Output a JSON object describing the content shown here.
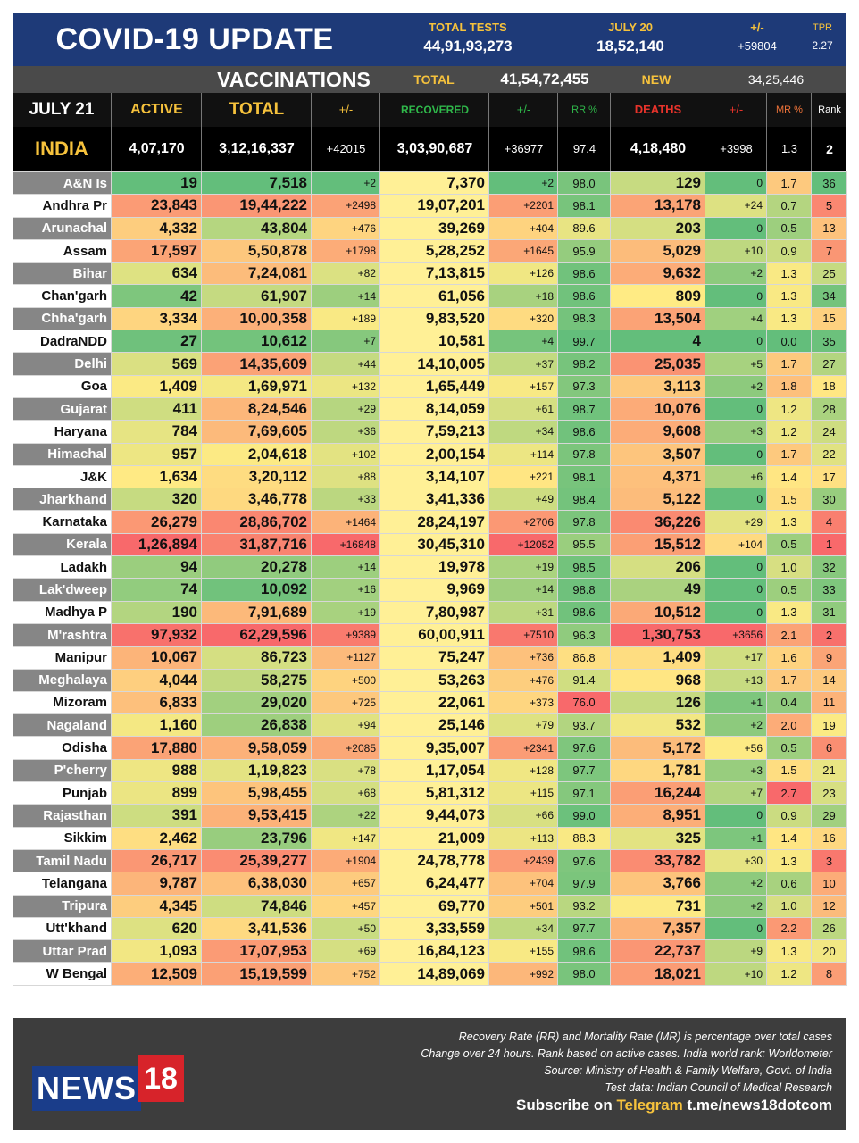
{
  "header": {
    "title": "COVID-19 UPDATE",
    "total_tests_label": "TOTAL TESTS",
    "total_tests_value": "44,91,93,273",
    "july20_label": "JULY 20",
    "july20_value": "18,52,140",
    "plusminus_label": "+/-",
    "plusminus_value": "+59804",
    "tpr_label": "TPR",
    "tpr_value": "2.27"
  },
  "vaccinations": {
    "label": "VACCINATIONS",
    "total_label": "TOTAL",
    "total_value": "41,54,72,455",
    "new_label": "NEW",
    "new_value": "34,25,446"
  },
  "columns": {
    "date": "JULY 21",
    "active": "ACTIVE",
    "total": "TOTAL",
    "total_delta": "+/-",
    "recovered": "RECOVERED",
    "rec_delta": "+/-",
    "rr": "RR %",
    "deaths": "DEATHS",
    "death_delta": "+/-",
    "mr": "MR %",
    "rank": "Rank"
  },
  "colors": {
    "header_bg": "#1e3a78",
    "gold": "#f6c23c",
    "active_label": "#f6c23c",
    "recovered_label": "#2fb84a",
    "deaths_label": "#e8332b",
    "mr_label": "#f0743a",
    "footer_bg": "#3d3d3d",
    "news_blue": "#1a3d8a",
    "news_red": "#d7232a"
  },
  "india": {
    "name": "INDIA",
    "active": "4,07,170",
    "total": "3,12,16,337",
    "total_delta": "+42015",
    "recovered": "3,03,90,687",
    "rec_delta": "+36977",
    "rr": "97.4",
    "deaths": "4,18,480",
    "death_delta": "+3998",
    "mr": "1.3",
    "rank": "2"
  },
  "rows": [
    {
      "state": "A&N Is",
      "active": "19",
      "total": "7,518",
      "td": "+2",
      "rec": "7,370",
      "rd": "+2",
      "rr": "98.0",
      "deaths": "129",
      "dd": "0",
      "mr": "1.7",
      "rank": "36"
    },
    {
      "state": "Andhra Pr",
      "active": "23,843",
      "total": "19,44,222",
      "td": "+2498",
      "rec": "19,07,201",
      "rd": "+2201",
      "rr": "98.1",
      "deaths": "13,178",
      "dd": "+24",
      "mr": "0.7",
      "rank": "5"
    },
    {
      "state": "Arunachal",
      "active": "4,332",
      "total": "43,804",
      "td": "+476",
      "rec": "39,269",
      "rd": "+404",
      "rr": "89.6",
      "deaths": "203",
      "dd": "0",
      "mr": "0.5",
      "rank": "13"
    },
    {
      "state": "Assam",
      "active": "17,597",
      "total": "5,50,878",
      "td": "+1798",
      "rec": "5,28,252",
      "rd": "+1645",
      "rr": "95.9",
      "deaths": "5,029",
      "dd": "+10",
      "mr": "0.9",
      "rank": "7"
    },
    {
      "state": "Bihar",
      "active": "634",
      "total": "7,24,081",
      "td": "+82",
      "rec": "7,13,815",
      "rd": "+126",
      "rr": "98.6",
      "deaths": "9,632",
      "dd": "+2",
      "mr": "1.3",
      "rank": "25"
    },
    {
      "state": "Chan'garh",
      "active": "42",
      "total": "61,907",
      "td": "+14",
      "rec": "61,056",
      "rd": "+18",
      "rr": "98.6",
      "deaths": "809",
      "dd": "0",
      "mr": "1.3",
      "rank": "34"
    },
    {
      "state": "Chha'garh",
      "active": "3,334",
      "total": "10,00,358",
      "td": "+189",
      "rec": "9,83,520",
      "rd": "+320",
      "rr": "98.3",
      "deaths": "13,504",
      "dd": "+4",
      "mr": "1.3",
      "rank": "15"
    },
    {
      "state": "DadraNDD",
      "active": "27",
      "total": "10,612",
      "td": "+7",
      "rec": "10,581",
      "rd": "+4",
      "rr": "99.7",
      "deaths": "4",
      "dd": "0",
      "mr": "0.0",
      "rank": "35"
    },
    {
      "state": "Delhi",
      "active": "569",
      "total": "14,35,609",
      "td": "+44",
      "rec": "14,10,005",
      "rd": "+37",
      "rr": "98.2",
      "deaths": "25,035",
      "dd": "+5",
      "mr": "1.7",
      "rank": "27"
    },
    {
      "state": "Goa",
      "active": "1,409",
      "total": "1,69,971",
      "td": "+132",
      "rec": "1,65,449",
      "rd": "+157",
      "rr": "97.3",
      "deaths": "3,113",
      "dd": "+2",
      "mr": "1.8",
      "rank": "18"
    },
    {
      "state": "Gujarat",
      "active": "411",
      "total": "8,24,546",
      "td": "+29",
      "rec": "8,14,059",
      "rd": "+61",
      "rr": "98.7",
      "deaths": "10,076",
      "dd": "0",
      "mr": "1.2",
      "rank": "28"
    },
    {
      "state": "Haryana",
      "active": "784",
      "total": "7,69,605",
      "td": "+36",
      "rec": "7,59,213",
      "rd": "+34",
      "rr": "98.6",
      "deaths": "9,608",
      "dd": "+3",
      "mr": "1.2",
      "rank": "24"
    },
    {
      "state": "Himachal",
      "active": "957",
      "total": "2,04,618",
      "td": "+102",
      "rec": "2,00,154",
      "rd": "+114",
      "rr": "97.8",
      "deaths": "3,507",
      "dd": "0",
      "mr": "1.7",
      "rank": "22"
    },
    {
      "state": "J&K",
      "active": "1,634",
      "total": "3,20,112",
      "td": "+88",
      "rec": "3,14,107",
      "rd": "+221",
      "rr": "98.1",
      "deaths": "4,371",
      "dd": "+6",
      "mr": "1.4",
      "rank": "17"
    },
    {
      "state": "Jharkhand",
      "active": "320",
      "total": "3,46,778",
      "td": "+33",
      "rec": "3,41,336",
      "rd": "+49",
      "rr": "98.4",
      "deaths": "5,122",
      "dd": "0",
      "mr": "1.5",
      "rank": "30"
    },
    {
      "state": "Karnataka",
      "active": "26,279",
      "total": "28,86,702",
      "td": "+1464",
      "rec": "28,24,197",
      "rd": "+2706",
      "rr": "97.8",
      "deaths": "36,226",
      "dd": "+29",
      "mr": "1.3",
      "rank": "4"
    },
    {
      "state": "Kerala",
      "active": "1,26,894",
      "total": "31,87,716",
      "td": "+16848",
      "rec": "30,45,310",
      "rd": "+12052",
      "rr": "95.5",
      "deaths": "15,512",
      "dd": "+104",
      "mr": "0.5",
      "rank": "1"
    },
    {
      "state": "Ladakh",
      "active": "94",
      "total": "20,278",
      "td": "+14",
      "rec": "19,978",
      "rd": "+19",
      "rr": "98.5",
      "deaths": "206",
      "dd": "0",
      "mr": "1.0",
      "rank": "32"
    },
    {
      "state": "Lak'dweep",
      "active": "74",
      "total": "10,092",
      "td": "+16",
      "rec": "9,969",
      "rd": "+14",
      "rr": "98.8",
      "deaths": "49",
      "dd": "0",
      "mr": "0.5",
      "rank": "33"
    },
    {
      "state": "Madhya P",
      "active": "190",
      "total": "7,91,689",
      "td": "+19",
      "rec": "7,80,987",
      "rd": "+31",
      "rr": "98.6",
      "deaths": "10,512",
      "dd": "0",
      "mr": "1.3",
      "rank": "31"
    },
    {
      "state": "M'rashtra",
      "active": "97,932",
      "total": "62,29,596",
      "td": "+9389",
      "rec": "60,00,911",
      "rd": "+7510",
      "rr": "96.3",
      "deaths": "1,30,753",
      "dd": "+3656",
      "mr": "2.1",
      "rank": "2"
    },
    {
      "state": "Manipur",
      "active": "10,067",
      "total": "86,723",
      "td": "+1127",
      "rec": "75,247",
      "rd": "+736",
      "rr": "86.8",
      "deaths": "1,409",
      "dd": "+17",
      "mr": "1.6",
      "rank": "9"
    },
    {
      "state": "Meghalaya",
      "active": "4,044",
      "total": "58,275",
      "td": "+500",
      "rec": "53,263",
      "rd": "+476",
      "rr": "91.4",
      "deaths": "968",
      "dd": "+13",
      "mr": "1.7",
      "rank": "14"
    },
    {
      "state": "Mizoram",
      "active": "6,833",
      "total": "29,020",
      "td": "+725",
      "rec": "22,061",
      "rd": "+373",
      "rr": "76.0",
      "deaths": "126",
      "dd": "+1",
      "mr": "0.4",
      "rank": "11"
    },
    {
      "state": "Nagaland",
      "active": "1,160",
      "total": "26,838",
      "td": "+94",
      "rec": "25,146",
      "rd": "+79",
      "rr": "93.7",
      "deaths": "532",
      "dd": "+2",
      "mr": "2.0",
      "rank": "19"
    },
    {
      "state": "Odisha",
      "active": "17,880",
      "total": "9,58,059",
      "td": "+2085",
      "rec": "9,35,007",
      "rd": "+2341",
      "rr": "97.6",
      "deaths": "5,172",
      "dd": "+56",
      "mr": "0.5",
      "rank": "6"
    },
    {
      "state": "P'cherry",
      "active": "988",
      "total": "1,19,823",
      "td": "+78",
      "rec": "1,17,054",
      "rd": "+128",
      "rr": "97.7",
      "deaths": "1,781",
      "dd": "+3",
      "mr": "1.5",
      "rank": "21"
    },
    {
      "state": "Punjab",
      "active": "899",
      "total": "5,98,455",
      "td": "+68",
      "rec": "5,81,312",
      "rd": "+115",
      "rr": "97.1",
      "deaths": "16,244",
      "dd": "+7",
      "mr": "2.7",
      "rank": "23"
    },
    {
      "state": "Rajasthan",
      "active": "391",
      "total": "9,53,415",
      "td": "+22",
      "rec": "9,44,073",
      "rd": "+66",
      "rr": "99.0",
      "deaths": "8,951",
      "dd": "0",
      "mr": "0.9",
      "rank": "29"
    },
    {
      "state": "Sikkim",
      "active": "2,462",
      "total": "23,796",
      "td": "+147",
      "rec": "21,009",
      "rd": "+113",
      "rr": "88.3",
      "deaths": "325",
      "dd": "+1",
      "mr": "1.4",
      "rank": "16"
    },
    {
      "state": "Tamil Nadu",
      "active": "26,717",
      "total": "25,39,277",
      "td": "+1904",
      "rec": "24,78,778",
      "rd": "+2439",
      "rr": "97.6",
      "deaths": "33,782",
      "dd": "+30",
      "mr": "1.3",
      "rank": "3"
    },
    {
      "state": "Telangana",
      "active": "9,787",
      "total": "6,38,030",
      "td": "+657",
      "rec": "6,24,477",
      "rd": "+704",
      "rr": "97.9",
      "deaths": "3,766",
      "dd": "+2",
      "mr": "0.6",
      "rank": "10"
    },
    {
      "state": "Tripura",
      "active": "4,345",
      "total": "74,846",
      "td": "+457",
      "rec": "69,770",
      "rd": "+501",
      "rr": "93.2",
      "deaths": "731",
      "dd": "+2",
      "mr": "1.0",
      "rank": "12"
    },
    {
      "state": "Utt'khand",
      "active": "620",
      "total": "3,41,536",
      "td": "+50",
      "rec": "3,33,559",
      "rd": "+34",
      "rr": "97.7",
      "deaths": "7,357",
      "dd": "0",
      "mr": "2.2",
      "rank": "26"
    },
    {
      "state": "Uttar Prad",
      "active": "1,093",
      "total": "17,07,953",
      "td": "+69",
      "rec": "16,84,123",
      "rd": "+155",
      "rr": "98.6",
      "deaths": "22,737",
      "dd": "+9",
      "mr": "1.3",
      "rank": "20"
    },
    {
      "state": "W Bengal",
      "active": "12,509",
      "total": "15,19,599",
      "td": "+752",
      "rec": "14,89,069",
      "rd": "+992",
      "rr": "98.0",
      "deaths": "18,021",
      "dd": "+10",
      "mr": "1.2",
      "rank": "8"
    }
  ],
  "footer": {
    "note1": "Recovery Rate (RR) and Mortality Rate (MR) is percentage over total cases",
    "note2": "Change over 24 hours. Rank based on active cases. India world rank: Worldometer",
    "note3": "Source: Ministry of Health & Family Welfare, Govt. of India",
    "note4": "Test data: Indian Council of Medical Research",
    "subscribe_prefix": "Subscribe on",
    "subscribe_channel": "Telegram",
    "subscribe_link": "t.me/news18dotcom",
    "logo_text": "NEWS",
    "logo_number": "18"
  }
}
